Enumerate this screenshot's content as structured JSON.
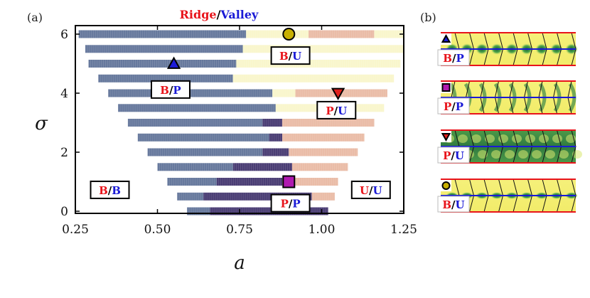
{
  "chart_data": {
    "type": "heatmap",
    "title_parts": [
      {
        "text": "Ridge",
        "color": "#e8141b"
      },
      {
        "text": "/",
        "color": "#000000"
      },
      {
        "text": "Valley",
        "color": "#1a1ad6"
      }
    ],
    "panel_a_label": "(a)",
    "panel_b_label": "(b)",
    "xlabel": "a",
    "ylabel": "σ",
    "xlim": [
      0.25,
      1.25
    ],
    "ylim": [
      0,
      6.1
    ],
    "xticks": [
      {
        "value": 0.25,
        "label": "0.25"
      },
      {
        "value": 0.5,
        "label": "0.50"
      },
      {
        "value": 0.75,
        "label": "0.75"
      },
      {
        "value": 1.0,
        "label": "1.00"
      },
      {
        "value": 1.25,
        "label": "1.25"
      }
    ],
    "yticks": [
      {
        "value": 0,
        "label": "0"
      },
      {
        "value": 2,
        "label": "2"
      },
      {
        "value": 4,
        "label": "4"
      },
      {
        "value": 6,
        "label": "6"
      }
    ],
    "categories": [
      "B/P",
      "P/P",
      "P/U",
      "B/U"
    ],
    "category_colors": [
      "#5a6e95",
      "#3b2d68",
      "#e8b6a0",
      "#f8f5c8"
    ],
    "rows": [
      {
        "sigma": 6.0,
        "start": 0.26,
        "segments": [
          {
            "until": 0.77,
            "category": "B/P"
          },
          {
            "until": 0.96,
            "category": "B/U"
          },
          {
            "until": 1.16,
            "category": "P/U"
          },
          {
            "until": 1.25,
            "category": "B/U"
          }
        ]
      },
      {
        "sigma": 5.5,
        "start": 0.28,
        "segments": [
          {
            "until": 0.76,
            "category": "B/P"
          },
          {
            "until": 1.25,
            "category": "B/U"
          }
        ]
      },
      {
        "sigma": 5.0,
        "start": 0.29,
        "segments": [
          {
            "until": 0.74,
            "category": "B/P"
          },
          {
            "until": 1.24,
            "category": "B/U"
          }
        ]
      },
      {
        "sigma": 4.5,
        "start": 0.32,
        "segments": [
          {
            "until": 0.73,
            "category": "B/P"
          },
          {
            "until": 1.22,
            "category": "B/U"
          }
        ]
      },
      {
        "sigma": 4.0,
        "start": 0.35,
        "segments": [
          {
            "until": 0.85,
            "category": "B/P"
          },
          {
            "until": 0.92,
            "category": "B/U"
          },
          {
            "until": 1.2,
            "category": "P/U"
          }
        ]
      },
      {
        "sigma": 3.5,
        "start": 0.38,
        "segments": [
          {
            "until": 0.86,
            "category": "B/P"
          },
          {
            "until": 1.19,
            "category": "B/U"
          }
        ]
      },
      {
        "sigma": 3.0,
        "start": 0.41,
        "segments": [
          {
            "until": 0.82,
            "category": "B/P"
          },
          {
            "until": 0.88,
            "category": "P/P"
          },
          {
            "until": 1.16,
            "category": "P/U"
          }
        ]
      },
      {
        "sigma": 2.5,
        "start": 0.44,
        "segments": [
          {
            "until": 0.84,
            "category": "B/P"
          },
          {
            "until": 0.88,
            "category": "P/P"
          },
          {
            "until": 1.13,
            "category": "P/U"
          }
        ]
      },
      {
        "sigma": 2.0,
        "start": 0.47,
        "segments": [
          {
            "until": 0.82,
            "category": "B/P"
          },
          {
            "until": 0.9,
            "category": "P/P"
          },
          {
            "until": 1.11,
            "category": "P/U"
          }
        ]
      },
      {
        "sigma": 1.5,
        "start": 0.5,
        "segments": [
          {
            "until": 0.73,
            "category": "B/P"
          },
          {
            "until": 0.91,
            "category": "P/P"
          },
          {
            "until": 1.08,
            "category": "P/U"
          }
        ]
      },
      {
        "sigma": 1.0,
        "start": 0.53,
        "segments": [
          {
            "until": 0.68,
            "category": "B/P"
          },
          {
            "until": 0.88,
            "category": "P/P"
          },
          {
            "until": 1.05,
            "category": "P/U"
          }
        ]
      },
      {
        "sigma": 0.5,
        "start": 0.56,
        "segments": [
          {
            "until": 0.64,
            "category": "B/P"
          },
          {
            "until": 0.97,
            "category": "P/P"
          },
          {
            "until": 1.04,
            "category": "P/U"
          }
        ]
      },
      {
        "sigma": 0.0,
        "start": 0.59,
        "segments": [
          {
            "until": 0.66,
            "category": "B/P"
          },
          {
            "until": 1.02,
            "category": "P/P"
          }
        ]
      }
    ],
    "region_labels": [
      {
        "a": 0.355,
        "sigma": 0.7,
        "ridge": "B",
        "valley": "B"
      },
      {
        "a": 0.54,
        "sigma": 4.1,
        "ridge": "B",
        "valley": "P"
      },
      {
        "a": 0.905,
        "sigma": 5.25,
        "ridge": "B",
        "valley": "U"
      },
      {
        "a": 1.045,
        "sigma": 3.4,
        "ridge": "P",
        "valley": "U"
      },
      {
        "a": 0.905,
        "sigma": 0.25,
        "ridge": "P",
        "valley": "P"
      },
      {
        "a": 1.15,
        "sigma": 0.7,
        "ridge": "U",
        "valley": "U"
      }
    ],
    "markers": [
      {
        "shape": "circle",
        "a": 0.9,
        "sigma": 6.0,
        "color": "#c8b000"
      },
      {
        "shape": "triangle-up",
        "a": 0.55,
        "sigma": 5.0,
        "color": "#1c1cd8"
      },
      {
        "shape": "triangle-down",
        "a": 1.05,
        "sigma": 4.0,
        "color": "#e0201c"
      },
      {
        "shape": "square",
        "a": 0.9,
        "sigma": 1.0,
        "color": "#b01ab0"
      }
    ],
    "panel_b": [
      {
        "marker": "triangle-up",
        "color": "#1c1cd8",
        "ridge": "B",
        "valley": "P",
        "pattern": "bubbles"
      },
      {
        "marker": "square",
        "color": "#b01ab0",
        "ridge": "P",
        "valley": "P",
        "pattern": "zigzag"
      },
      {
        "marker": "triangle-down",
        "color": "#e0201c",
        "ridge": "P",
        "valley": "U",
        "pattern": "cells"
      },
      {
        "marker": "circle",
        "color": "#c8b000",
        "ridge": "B",
        "valley": "U",
        "pattern": "sparse"
      }
    ],
    "ridge_color": "#e8141b",
    "valley_color": "#1a1ad6"
  }
}
